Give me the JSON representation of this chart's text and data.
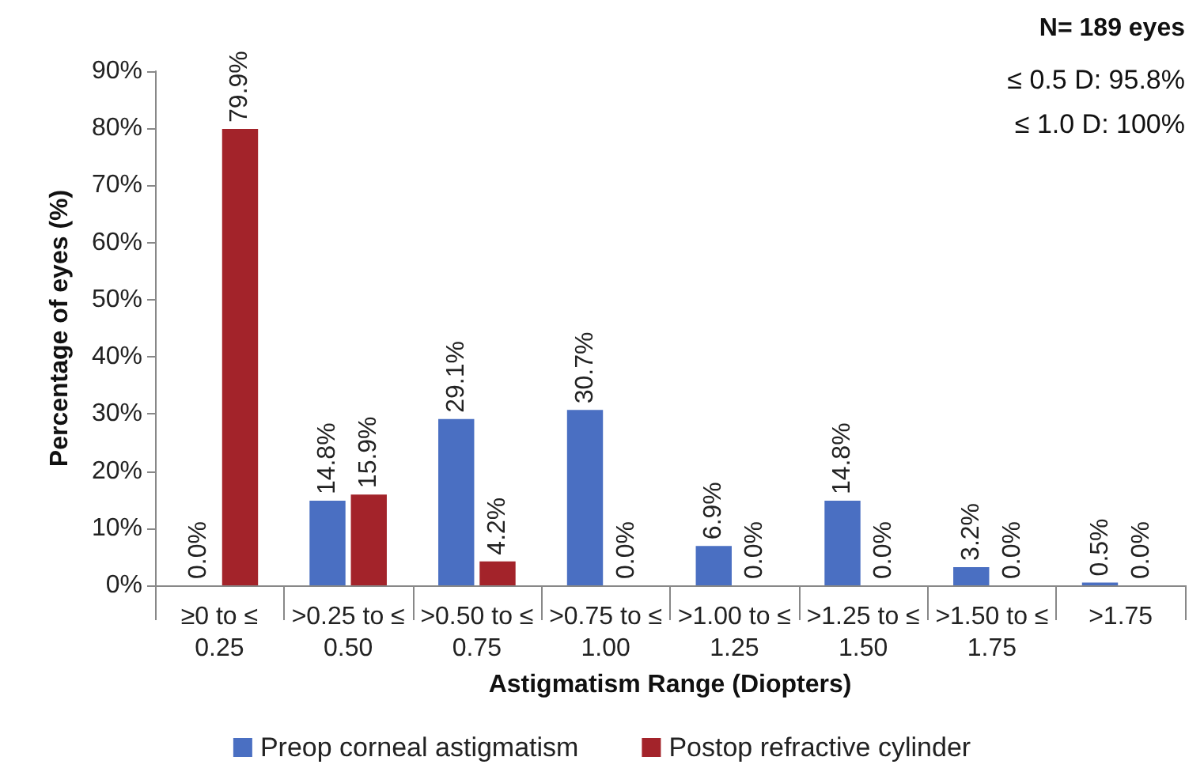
{
  "chart_data": {
    "type": "bar",
    "xlabel": "Astigmatism Range (Diopters)",
    "ylabel": "Percentage of eyes (%)",
    "categories": [
      "≥0 to ≤0.25",
      ">0.25 to ≤0.50",
      ">0.50 to ≤0.75",
      ">0.75 to ≤1.00",
      ">1.00 to ≤1.25",
      ">1.25 to ≤1.50",
      ">1.50 to ≤1.75",
      ">1.75"
    ],
    "series": [
      {
        "name": "Preop corneal astigmatism",
        "color": "#4a6fc2",
        "values": [
          0.0,
          14.8,
          29.1,
          30.7,
          6.9,
          14.8,
          3.2,
          0.5
        ],
        "value_labels": [
          "0.0%",
          "14.8%",
          "29.1%",
          "30.7%",
          "6.9%",
          "14.8%",
          "3.2%",
          "0.5%"
        ]
      },
      {
        "name": "Postop refractive cylinder",
        "color": "#a3232a",
        "values": [
          79.9,
          15.9,
          4.2,
          0.0,
          0.0,
          0.0,
          0.0,
          0.0
        ],
        "value_labels": [
          "79.9%",
          "15.9%",
          "4.2%",
          "0.0%",
          "0.0%",
          "0.0%",
          "0.0%",
          "0.0%"
        ]
      }
    ],
    "ylim": [
      0,
      90
    ],
    "yticks": [
      {
        "value": 0,
        "label": "0%"
      },
      {
        "value": 10,
        "label": "10%"
      },
      {
        "value": 20,
        "label": "20%"
      },
      {
        "value": 30,
        "label": "30%"
      },
      {
        "value": 40,
        "label": "40%"
      },
      {
        "value": 50,
        "label": "50%"
      },
      {
        "value": 60,
        "label": "60%"
      },
      {
        "value": 70,
        "label": "70%"
      },
      {
        "value": 80,
        "label": "80%"
      },
      {
        "value": 90,
        "label": "90%"
      }
    ],
    "annotations": [
      "N= 189 eyes",
      "≤ 0.5 D: 95.8%",
      "≤ 1.0 D: 100%"
    ],
    "grid": false,
    "legend": "bottom"
  }
}
